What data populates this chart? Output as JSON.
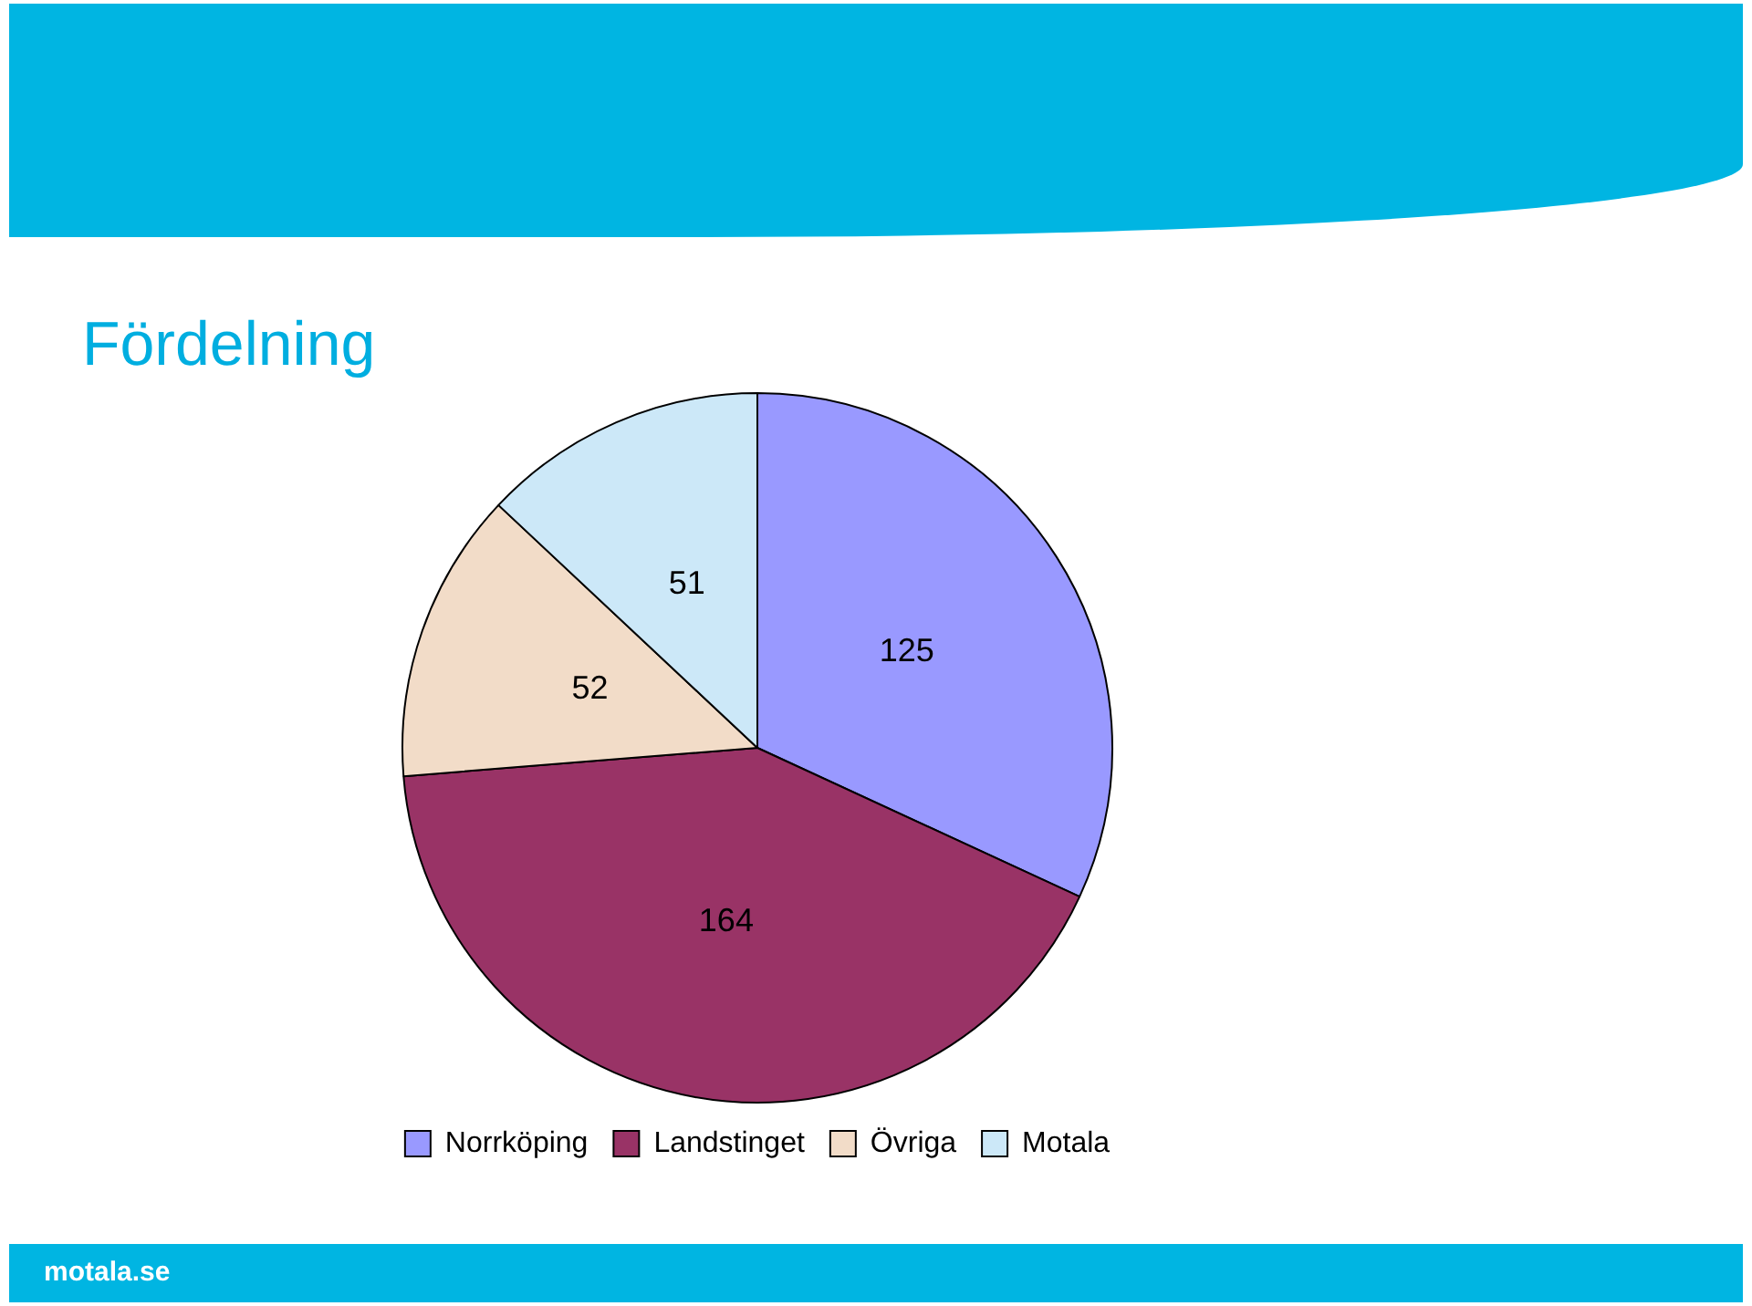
{
  "chart_data": {
    "type": "pie",
    "title": "Fördelning",
    "categories": [
      "Norrköping",
      "Landstinget",
      "Övriga",
      "Motala"
    ],
    "values": [
      125,
      164,
      52,
      51
    ],
    "colors": [
      "#9999ff",
      "#993366",
      "#f2dcc8",
      "#cce8f8"
    ],
    "data_labels": true,
    "legend": "bottom",
    "annotations": [
      "motala.se"
    ]
  }
}
